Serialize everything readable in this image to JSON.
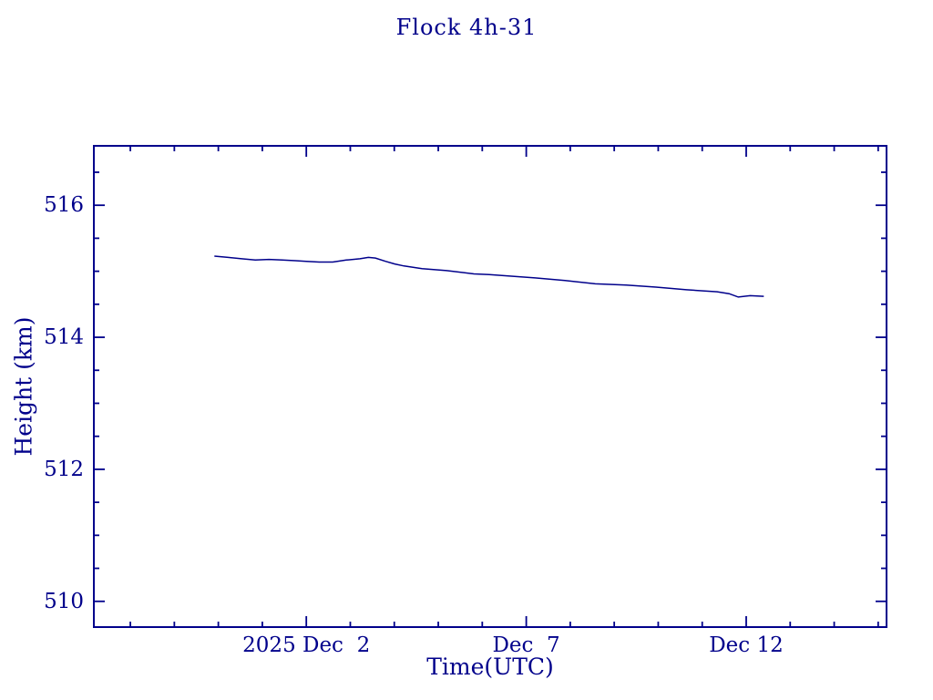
{
  "colors": {
    "ink": "#00008B",
    "background": "#FFFFFF"
  },
  "chart_data": {
    "type": "line",
    "title": "Flock 4h-31",
    "xlabel": "Time(UTC)",
    "ylabel": "Height (km)",
    "grid": false,
    "legend": "none",
    "x_axis": {
      "unit": "days relative to 2025 Dec 2 00:00 UTC",
      "range": [
        -4.83,
        13.19
      ],
      "minor_tick_step": 1,
      "major_ticks": [
        {
          "x": 0,
          "label": "2025 Dec  2"
        },
        {
          "x": 5,
          "label": "Dec  7"
        },
        {
          "x": 10,
          "label": "Dec 12"
        }
      ]
    },
    "y_axis": {
      "unit": "km",
      "range": [
        509.61,
        516.9
      ],
      "minor_tick_step": 0.5,
      "major_ticks": [
        {
          "y": 510,
          "label": "510"
        },
        {
          "y": 512,
          "label": "512"
        },
        {
          "y": 514,
          "label": "514"
        },
        {
          "y": 516,
          "label": "516"
        }
      ]
    },
    "series": [
      {
        "name": "Flock 4h-31 height",
        "points": [
          [
            -2.09,
            515.23
          ],
          [
            -1.78,
            515.21
          ],
          [
            -1.47,
            515.19
          ],
          [
            -1.16,
            515.17
          ],
          [
            -0.85,
            515.18
          ],
          [
            -0.55,
            515.17
          ],
          [
            -0.25,
            515.16
          ],
          [
            0.0,
            515.15
          ],
          [
            0.29,
            515.14
          ],
          [
            0.6,
            515.14
          ],
          [
            0.91,
            515.17
          ],
          [
            1.22,
            515.19
          ],
          [
            1.41,
            515.21
          ],
          [
            1.57,
            515.2
          ],
          [
            1.8,
            515.15
          ],
          [
            2.01,
            515.11
          ],
          [
            2.22,
            515.08
          ],
          [
            2.63,
            515.04
          ],
          [
            3.19,
            515.01
          ],
          [
            3.81,
            514.96
          ],
          [
            4.16,
            514.95
          ],
          [
            5.2,
            514.9
          ],
          [
            5.88,
            514.86
          ],
          [
            6.57,
            514.81
          ],
          [
            7.27,
            514.79
          ],
          [
            7.95,
            514.76
          ],
          [
            8.64,
            514.72
          ],
          [
            9.34,
            514.69
          ],
          [
            9.61,
            514.66
          ],
          [
            9.82,
            514.61
          ],
          [
            10.09,
            514.63
          ],
          [
            10.4,
            514.62
          ]
        ]
      }
    ]
  }
}
